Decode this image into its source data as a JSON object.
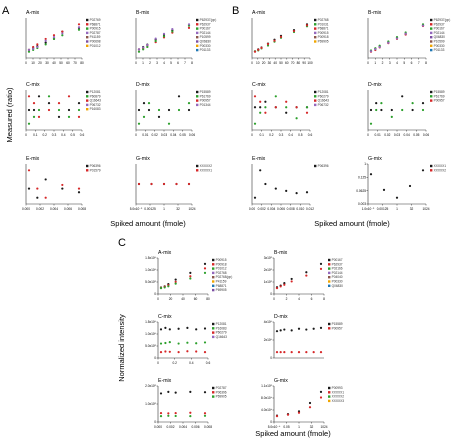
{
  "figure": {
    "panel_letters": [
      "A",
      "B",
      "C"
    ],
    "axis_titles": {
      "A": {
        "y": "Measured (ratio)",
        "x": "Spiked amount (fmole)"
      },
      "B": {
        "x": "Spiked amount (fmole)"
      },
      "C": {
        "y": "Normalized intensity",
        "x": "Spiked amount (fmole)"
      }
    }
  },
  "chart_data": [
    {
      "panel": "A",
      "title": "A-mix",
      "type": "scatter",
      "xticks": [
        "0",
        "10",
        "20",
        "30",
        "40",
        "50",
        "60",
        "70",
        "80"
      ],
      "legend": [
        "P02769",
        "P68871",
        "P00915",
        "P02787",
        "P41159",
        "P00698",
        "P01012"
      ],
      "colors": [
        "#1a1a1a",
        "#d62728",
        "#2ca02c",
        "#9467bd",
        "#8c564b",
        "#7b4ea3",
        "#f0a500"
      ],
      "x": [
        0,
        5,
        10,
        20,
        30,
        40,
        60
      ],
      "series": [
        {
          "values": [
            1.0,
            1.05,
            1.1,
            1.2,
            1.3,
            1.5,
            1.6
          ]
        },
        {
          "values": [
            1.0,
            1.08,
            1.15,
            1.3,
            1.4,
            1.5,
            1.7
          ]
        },
        {
          "values": [
            0.95,
            1.0,
            1.05,
            1.15,
            1.3,
            1.4,
            1.55
          ]
        },
        {
          "values": [
            1.0,
            1.03,
            1.08,
            1.25,
            1.35,
            1.45,
            1.62
          ]
        }
      ]
    },
    {
      "panel": "A",
      "title": "B-mix",
      "type": "scatter",
      "xticks": [
        "0",
        "1",
        "2",
        "3",
        "4",
        "5",
        "6",
        "7",
        "8"
      ],
      "legend": [
        "P62937(pp)",
        "P62937",
        "P00167",
        "P02144",
        "P10599",
        "Q06830",
        "P00330",
        "P01133"
      ],
      "colors": [
        "#1a1a1a",
        "#d62728",
        "#2ca02c",
        "#9467bd",
        "#8c564b",
        "#7b4ea3",
        "#f0a500",
        "#1f77b4"
      ],
      "x": [
        0,
        0.5,
        1,
        2,
        3,
        4,
        6
      ],
      "series": [
        {
          "values": [
            1.0,
            1.1,
            1.2,
            1.4,
            1.6,
            1.8,
            2.0
          ]
        },
        {
          "values": [
            1.0,
            1.05,
            1.15,
            1.3,
            1.5,
            1.7,
            1.9
          ]
        },
        {
          "values": [
            0.9,
            1.0,
            1.1,
            1.35,
            1.55,
            1.75,
            2.0
          ]
        },
        {
          "values": [
            1.0,
            1.08,
            1.18,
            1.45,
            1.65,
            1.85,
            2.05
          ]
        }
      ]
    },
    {
      "panel": "A",
      "title": "C-mix",
      "type": "scatter",
      "xticks": [
        "0",
        "0.1",
        "0.2",
        "0.3",
        "0.4",
        "0.5",
        "0.6"
      ],
      "legend": [
        "P12081",
        "P60879",
        "Q16643",
        "P06732",
        "P16083"
      ],
      "colors": [
        "#1a1a1a",
        "#2ca02c",
        "#d62728",
        "#9467bd",
        "#f0a500"
      ],
      "x": [
        0,
        0.05,
        0.1,
        0.2,
        0.3,
        0.4,
        0.5
      ],
      "series": [
        {
          "values": [
            1.0,
            1.0,
            1.02,
            1.01,
            0.99,
            1.0,
            1.01
          ]
        },
        {
          "values": [
            0.98,
            0.99,
            1.0,
            1.02,
            1.0,
            0.99,
            1.0
          ]
        },
        {
          "values": [
            1.02,
            1.01,
            0.99,
            1.0,
            1.01,
            1.02,
            0.99
          ]
        }
      ]
    },
    {
      "panel": "A",
      "title": "D-mix",
      "type": "scatter",
      "xticks": [
        "0",
        "0.01",
        "0.02",
        "0.03",
        "0.04",
        "0.05",
        "0.06"
      ],
      "legend": [
        "P15589",
        "P61769",
        "P00957",
        "P01344"
      ],
      "colors": [
        "#1a1a1a",
        "#2ca02c",
        "#d62728",
        "#9467bd"
      ],
      "x": [
        0,
        0.005,
        0.01,
        0.02,
        0.03,
        0.04,
        0.05
      ],
      "series": [
        {
          "values": [
            1.0,
            1.01,
            1.0,
            0.99,
            1.0,
            1.02,
            1.0
          ]
        },
        {
          "values": [
            0.98,
            0.99,
            1.01,
            1.0,
            0.98,
            1.0,
            1.01
          ]
        }
      ]
    },
    {
      "panel": "A",
      "title": "E-mix",
      "type": "scatter",
      "xticks": [
        "0.000",
        "0.002",
        "0.004",
        "0.006",
        "0.008"
      ],
      "legend": [
        "P06396",
        "P01579"
      ],
      "colors": [
        "#1a1a1a",
        "#d62728"
      ],
      "x": [
        0,
        0.001,
        0.002,
        0.004,
        0.006
      ],
      "series": [
        {
          "values": [
            1.0,
            0.95,
            1.05,
            1.0,
            0.98
          ]
        },
        {
          "values": [
            1.1,
            1.0,
            0.95,
            1.02,
            1.0
          ]
        }
      ]
    },
    {
      "panel": "A",
      "title": "G-mix",
      "type": "scatter",
      "xticks": [
        "5.0x10⁻⁵",
        "0.00125",
        "1",
        "32",
        "1024"
      ],
      "legend": [
        "XXXXX2",
        "XXXXX1"
      ],
      "colors": [
        "#1a1a1a",
        "#d62728"
      ],
      "x": [
        0,
        1,
        2,
        3,
        4
      ],
      "series": [
        {
          "values": [
            1.0,
            1.0,
            1.0,
            1.0,
            1.0
          ]
        },
        {
          "values": [
            1.0,
            1.0,
            1.0,
            1.0,
            1.0
          ]
        }
      ]
    },
    {
      "panel": "B",
      "title": "A-mix",
      "type": "scatter",
      "xticks": [
        "0",
        "10",
        "20",
        "30",
        "40",
        "50",
        "60",
        "70",
        "80",
        "90",
        "100"
      ],
      "legend": [
        "P02768",
        "P01031",
        "P68871",
        "P00915",
        "P00918",
        "P69905"
      ],
      "colors": [
        "#1a1a1a",
        "#2ca02c",
        "#d62728",
        "#9467bd",
        "#8c564b",
        "#f0a500"
      ],
      "x": [
        0,
        5,
        10,
        20,
        30,
        40,
        60,
        80
      ],
      "series": [
        {
          "values": [
            1,
            2,
            3,
            5,
            7,
            9,
            12,
            15
          ]
        },
        {
          "values": [
            1,
            1.5,
            2.5,
            4,
            6,
            8,
            11,
            14
          ]
        },
        {
          "values": [
            0.8,
            1.8,
            2.8,
            4.8,
            6.5,
            8.5,
            11.5,
            14.5
          ]
        }
      ]
    },
    {
      "panel": "B",
      "title": "B-mix",
      "type": "scatter",
      "xticks": [
        "0",
        "1",
        "2",
        "3",
        "4",
        "5",
        "6",
        "7",
        "8"
      ],
      "legend": [
        "P62937(pp)",
        "P62937",
        "P00167",
        "P02144",
        "Q06830",
        "P10599",
        "P00330",
        "P01133"
      ],
      "colors": [
        "#1a1a1a",
        "#d62728",
        "#2ca02c",
        "#9467bd",
        "#7b4ea3",
        "#8c564b",
        "#f0a500",
        "#1f77b4"
      ],
      "x": [
        0,
        0.5,
        1,
        2,
        3,
        4,
        6
      ],
      "series": [
        {
          "values": [
            1,
            1.5,
            2,
            3,
            4,
            5,
            7
          ]
        },
        {
          "values": [
            0.8,
            1.2,
            1.8,
            2.8,
            3.8,
            4.8,
            6.8
          ]
        },
        {
          "values": [
            1.1,
            1.6,
            2.2,
            3.2,
            4.2,
            5.3,
            7.2
          ]
        },
        {
          "values": [
            0.9,
            1.4,
            1.9,
            2.9,
            3.9,
            5.0,
            6.9
          ]
        }
      ]
    },
    {
      "panel": "B",
      "title": "C-mix",
      "type": "scatter",
      "xticks": [
        "0",
        "0.1",
        "0.2",
        "0.3",
        "0.4",
        "0.5",
        "0.6"
      ],
      "legend": [
        "P12081",
        "P60279",
        "Q16643",
        "P06732"
      ],
      "colors": [
        "#1a1a1a",
        "#2ca02c",
        "#d62728",
        "#9467bd"
      ],
      "x": [
        0,
        0.05,
        0.1,
        0.2,
        0.3,
        0.4,
        0.5
      ],
      "series": [
        {
          "values": [
            1.0,
            1.0,
            1.01,
            1.0,
            0.99,
            1.0,
            1.0
          ]
        },
        {
          "values": [
            0.97,
            0.99,
            1.0,
            1.02,
            1.0,
            0.98,
            1.0
          ]
        },
        {
          "values": [
            1.02,
            1.01,
            0.99,
            1.0,
            1.01,
            1.0,
            0.99
          ]
        }
      ]
    },
    {
      "panel": "B",
      "title": "D-mix",
      "type": "scatter",
      "xticks": [
        "0",
        "0.01",
        "0.02",
        "0.03",
        "0.04",
        "0.05",
        "0.06"
      ],
      "legend": [
        "P15589",
        "P61769",
        "P00957"
      ],
      "colors": [
        "#1a1a1a",
        "#2ca02c",
        "#d62728"
      ],
      "x": [
        0,
        0.005,
        0.01,
        0.02,
        0.03,
        0.04,
        0.05
      ],
      "series": [
        {
          "values": [
            1.0,
            1.01,
            1.0,
            1.0,
            1.02,
            1.0,
            1.01
          ]
        },
        {
          "values": [
            0.98,
            1.0,
            1.01,
            0.99,
            1.0,
            1.01,
            1.0
          ]
        }
      ]
    },
    {
      "panel": "B",
      "title": "E-mix",
      "type": "scatter",
      "xticks": [
        "0.00",
        "0.002",
        "0.004",
        "0.006",
        "0.008",
        "0.010",
        "0.012"
      ],
      "legend": [
        "P06396"
      ],
      "colors": [
        "#1a1a1a"
      ],
      "x": [
        0,
        0.001,
        0.002,
        0.004,
        0.006,
        0.008,
        0.01
      ],
      "series": [
        {
          "values": [
            0.6,
            1.2,
            0.9,
            0.8,
            0.75,
            0.7,
            0.72
          ]
        }
      ]
    },
    {
      "panel": "B",
      "title": "G-mix",
      "type": "scatter",
      "yticks": [
        "1",
        "0.125",
        "0.0625",
        "0.003"
      ],
      "xticks": [
        "1.0x10⁻⁵",
        "0.00125",
        "1",
        "32",
        "1024"
      ],
      "legend": [
        "XXXXX1",
        "XXXXX2"
      ],
      "colors": [
        "#1a1a1a",
        "#d62728"
      ],
      "x": [
        0,
        1,
        2,
        3,
        4
      ],
      "series": [
        {
          "values": [
            0.9,
            0.5,
            0.3,
            0.6,
            1.0
          ]
        }
      ]
    },
    {
      "panel": "C",
      "title": "A-mix",
      "type": "scatter",
      "yticks": [
        "1.5x10⁶",
        "1.0x10⁶",
        "5.0x10⁵",
        "0"
      ],
      "xticks": [
        "0",
        "20",
        "40",
        "60",
        "80"
      ],
      "legend": [
        "P00915",
        "P00918",
        "P01012",
        "P02768",
        "P02768(pp)",
        "P41159",
        "P68871",
        "P69905"
      ],
      "colors": [
        "#1a1a1a",
        "#d62728",
        "#2ca02c",
        "#9467bd",
        "#8c564b",
        "#f0a500",
        "#1f77b4",
        "#7b4ea3"
      ],
      "x": [
        0,
        5,
        10,
        20,
        40,
        60
      ],
      "series": [
        {
          "values": [
            0.05,
            0.1,
            0.2,
            0.4,
            0.7,
            1.1
          ]
        },
        {
          "values": [
            0.03,
            0.08,
            0.15,
            0.3,
            0.55,
            0.9
          ]
        },
        {
          "values": [
            0.02,
            0.05,
            0.1,
            0.22,
            0.45,
            0.7
          ]
        }
      ]
    },
    {
      "panel": "C",
      "title": "B-mix",
      "type": "scatter",
      "yticks": [
        "3x10⁵",
        "2x10⁵",
        "1x10⁵",
        "0"
      ],
      "xticks": [
        "0",
        "2",
        "4",
        "6",
        "8"
      ],
      "legend": [
        "P00167",
        "P62937",
        "P02166",
        "P02144",
        "P04040",
        "P00330",
        "Q06830"
      ],
      "colors": [
        "#1a1a1a",
        "#d62728",
        "#2ca02c",
        "#9467bd",
        "#8c564b",
        "#f0a500",
        "#1f77b4"
      ],
      "x": [
        0,
        0.5,
        1,
        2,
        4,
        6
      ],
      "series": [
        {
          "values": [
            0.1,
            0.2,
            0.35,
            0.6,
            1.0,
            1.5
          ]
        },
        {
          "values": [
            0.05,
            0.15,
            0.25,
            0.45,
            0.8,
            1.2
          ]
        }
      ]
    },
    {
      "panel": "C",
      "title": "C-mix",
      "type": "scatter",
      "yticks": [
        "1.5x10⁶",
        "1.0x10⁶",
        "5.0x10⁵",
        "0"
      ],
      "xticks": [
        "0",
        "0.2",
        "0.4",
        "0.6"
      ],
      "legend": [
        "P12081",
        "P16083",
        "P60279",
        "Q16643"
      ],
      "colors": [
        "#1a1a1a",
        "#2ca02c",
        "#d62728",
        "#9467bd"
      ],
      "x": [
        0,
        0.05,
        0.1,
        0.2,
        0.3,
        0.4,
        0.5
      ],
      "series": [
        {
          "values": [
            0.9,
            0.95,
            0.9,
            0.92,
            0.95,
            0.9,
            0.93
          ]
        },
        {
          "values": [
            0.4,
            0.42,
            0.45,
            0.4,
            0.43,
            0.41,
            0.44
          ]
        },
        {
          "values": [
            0.1,
            0.12,
            0.11,
            0.1,
            0.13,
            0.12,
            0.1
          ]
        }
      ]
    },
    {
      "panel": "C",
      "title": "D-mix",
      "type": "scatter",
      "yticks": [
        "4x10⁶",
        "2x10⁶",
        "0"
      ],
      "xticks": [],
      "legend": [
        "P15589",
        "P00957"
      ],
      "colors": [
        "#1a1a1a",
        "#d62728"
      ],
      "x": [
        0,
        0.005,
        0.01,
        0.02,
        0.03,
        0.04,
        0.05,
        0.06
      ],
      "series": [
        {
          "values": [
            2.6,
            2.7,
            2.8,
            2.7,
            2.9,
            2.8,
            2.9,
            3.0
          ]
        },
        {
          "values": [
            0.05,
            0.05,
            0.05,
            0.05,
            0.05,
            0.05,
            0.05,
            0.05
          ]
        }
      ]
    },
    {
      "panel": "C",
      "title": "E-mix",
      "type": "scatter",
      "yticks": [
        "2.0x10⁵",
        "1.0x10⁵",
        "0"
      ],
      "xticks": [
        "0.000",
        "0.002",
        "0.004",
        "0.006",
        "0.008"
      ],
      "legend": [
        "P02787",
        "P06396",
        "P69905"
      ],
      "colors": [
        "#1a1a1a",
        "#d62728",
        "#2ca02c"
      ],
      "x": [
        0,
        0.001,
        0.002,
        0.004,
        0.006
      ],
      "series": [
        {
          "values": [
            1.6,
            1.7,
            1.65,
            1.7,
            1.68
          ]
        },
        {
          "values": [
            0.3,
            0.28,
            0.3,
            0.32,
            0.29
          ]
        },
        {
          "values": [
            0.1,
            0.12,
            0.11,
            0.1,
            0.12
          ]
        }
      ]
    },
    {
      "panel": "C",
      "title": "G-mix",
      "type": "scatter",
      "yticks": [
        "1.1x10⁵",
        "8.0x10⁴",
        "4.0x10⁴",
        "0"
      ],
      "xticks": [
        "5.0x10⁻⁶",
        "0.05",
        "1",
        "32",
        "1024"
      ],
      "legend": [
        "P00993",
        "XXXXX1",
        "XXXXX2",
        "XXXXX3"
      ],
      "colors": [
        "#1a1a1a",
        "#d62728",
        "#2ca02c",
        "#f0a500"
      ],
      "x": [
        0,
        1,
        2,
        3,
        4
      ],
      "series": [
        {
          "values": [
            0.05,
            0.1,
            0.2,
            0.5,
            0.9
          ]
        },
        {
          "values": [
            0.03,
            0.08,
            0.15,
            0.35,
            0.7
          ]
        }
      ]
    }
  ]
}
